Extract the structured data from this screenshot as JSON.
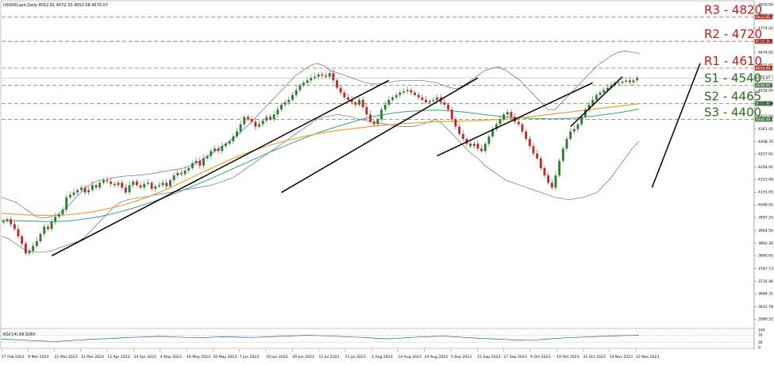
{
  "header": {
    "title": "US500Cash,Daily  4552.81 4572.33 4552.56 4570.07"
  },
  "rsi_panel": {
    "label": "RSI(14) 69.9260",
    "ticks": [
      "100",
      "70",
      "30",
      "0"
    ]
  },
  "chart_data": {
    "type": "candlestick",
    "y_ticks": [
      "4870.00",
      "4827.33",
      "4774.42",
      "4721.51",
      "4674.92",
      "4622.01",
      "4518.00",
      "4465.09",
      "4413.50",
      "4361.41",
      "4308.76",
      "4257.62",
      "4204.91",
      "4153.08",
      "4101.05",
      "4048.92",
      "3997.25",
      "3944.56",
      "3892.26",
      "3840.65",
      "3787.73",
      "3735.46",
      "3684.31",
      "3631.78",
      "3580.52"
    ],
    "y_range": [
      3545,
      4880
    ],
    "x_ticks": [
      "27 Feb 2023",
      "9 Mar 2023",
      "21 Mar 2023",
      "31 Mar 2023",
      "12 Apr 2023",
      "24 Apr 2023",
      "4 May 2023",
      "16 May 2023",
      "26 May 2023",
      "7 Jun 2023",
      "19 Jun 2023",
      "29 Jun 2023",
      "11 Jul 2023",
      "21 Jul 2023",
      "2 Aug 2023",
      "14 Aug 2023",
      "24 Aug 2023",
      "5 Sep 2023",
      "15 Sep 2023",
      "27 Sep 2023",
      "9 Oct 2023",
      "19 Oct 2023",
      "31 Oct 2023",
      "10 Nov 2023",
      "22 Nov 2023"
    ],
    "last_price": {
      "value": 4570.07,
      "label": "4570.07"
    },
    "levels": [
      {
        "name": "R3 - 4820",
        "value": 4820,
        "tag": "4820.00",
        "kind": "resistance"
      },
      {
        "name": "R2 - 4720",
        "value": 4720,
        "tag": "4720.00",
        "kind": "resistance"
      },
      {
        "name": "R1 - 4610",
        "value": 4610,
        "tag": "4610.00",
        "kind": "resistance"
      },
      {
        "name": "S1 - 4540",
        "value": 4540,
        "tag": "4540.00",
        "kind": "support"
      },
      {
        "name": "S2 - 4465",
        "value": 4465,
        "tag": "4465.00",
        "kind": "support"
      },
      {
        "name": "S3 - 4400",
        "value": 4400,
        "tag": "4400.00",
        "kind": "support"
      }
    ],
    "candles_close": [
      3982,
      3990,
      3970,
      3950,
      3920,
      3890,
      3850,
      3860,
      3880,
      3900,
      3930,
      3960,
      3950,
      3980,
      4000,
      4010,
      4030,
      4080,
      4090,
      4100,
      4110,
      4120,
      4100,
      4110,
      4130,
      4120,
      4140,
      4150,
      4145,
      4135,
      4130,
      4140,
      4120,
      4100,
      4130,
      4145,
      4130,
      4120,
      4135,
      4140,
      4115,
      4125,
      4130,
      4140,
      4125,
      4150,
      4170,
      4180,
      4175,
      4190,
      4200,
      4220,
      4230,
      4210,
      4240,
      4250,
      4270,
      4280,
      4270,
      4290,
      4300,
      4310,
      4330,
      4350,
      4380,
      4410,
      4400,
      4390,
      4370,
      4380,
      4395,
      4410,
      4400,
      4420,
      4440,
      4460,
      4470,
      4480,
      4500,
      4520,
      4540,
      4550,
      4560,
      4570,
      4575,
      4585,
      4580,
      4575,
      4590,
      4560,
      4530,
      4510,
      4490,
      4480,
      4470,
      4460,
      4480,
      4450,
      4420,
      4390,
      4380,
      4400,
      4440,
      4460,
      4480,
      4490,
      4500,
      4510,
      4515,
      4520,
      4510,
      4500,
      4490,
      4480,
      4470,
      4475,
      4480,
      4490,
      4470,
      4460,
      4440,
      4400,
      4370,
      4340,
      4320,
      4300,
      4290,
      4300,
      4280,
      4270,
      4300,
      4330,
      4360,
      4380,
      4400,
      4420,
      4430,
      4410,
      4390,
      4380,
      4350,
      4320,
      4290,
      4260,
      4240,
      4200,
      4170,
      4140,
      4120,
      4170,
      4230,
      4280,
      4320,
      4350,
      4360,
      4380,
      4410,
      4440,
      4460,
      4480,
      4500,
      4510,
      4520,
      4530,
      4540,
      4550,
      4550,
      4555,
      4560,
      4552,
      4560,
      4570
    ],
    "bollinger_mid": [
      4000,
      3990,
      3975,
      3960,
      3950,
      3940,
      3935,
      3935,
      3940,
      3950,
      3965,
      3985,
      4005,
      4025,
      4045,
      4065,
      4080,
      4095,
      4105,
      4110,
      4118,
      4125,
      4130,
      4135,
      4140,
      4145,
      4150,
      4155,
      4160,
      4165,
      4175,
      4185,
      4200,
      4215,
      4235,
      4250,
      4270,
      4285,
      4300,
      4320,
      4340,
      4360,
      4380,
      4400,
      4420,
      4440,
      4455,
      4470,
      4480,
      4490,
      4495,
      4500,
      4505,
      4505,
      4500,
      4495,
      4490,
      4485,
      4485,
      4488,
      4490,
      4492,
      4495,
      4492,
      4480,
      4460,
      4440,
      4420,
      4400,
      4380,
      4360,
      4340,
      4330,
      4320,
      4310,
      4300,
      4300,
      4305,
      4310,
      4300,
      4290,
      4280,
      4270,
      4270,
      4290,
      4320,
      4360,
      4400,
      4440,
      4470,
      4490,
      4500
    ],
    "bollinger_upper": [
      4080,
      4070,
      4060,
      4040,
      4020,
      4000,
      3995,
      4000,
      4010,
      4030,
      4060,
      4090,
      4120,
      4140,
      4150,
      4155,
      4160,
      4165,
      4168,
      4170,
      4172,
      4175,
      4180,
      4185,
      4190,
      4195,
      4200,
      4210,
      4225,
      4240,
      4260,
      4280,
      4300,
      4320,
      4345,
      4370,
      4400,
      4430,
      4460,
      4490,
      4520,
      4550,
      4580,
      4600,
      4620,
      4630,
      4620,
      4600,
      4590,
      4580,
      4570,
      4560,
      4550,
      4545,
      4545,
      4550,
      4555,
      4560,
      4560,
      4560,
      4560,
      4555,
      4550,
      4540,
      4530,
      4525,
      4540,
      4560,
      4580,
      4600,
      4610,
      4615,
      4600,
      4580,
      4560,
      4530,
      4500,
      4470,
      4440,
      4440,
      4470,
      4500,
      4530,
      4560,
      4590,
      4620,
      4640,
      4660,
      4675,
      4680,
      4676,
      4670
    ],
    "bollinger_lower": [
      3920,
      3910,
      3890,
      3870,
      3860,
      3855,
      3855,
      3860,
      3870,
      3880,
      3890,
      3900,
      3920,
      3950,
      3980,
      4010,
      4040,
      4060,
      4070,
      4075,
      4080,
      4085,
      4090,
      4095,
      4100,
      4105,
      4110,
      4115,
      4120,
      4125,
      4130,
      4140,
      4150,
      4160,
      4180,
      4200,
      4220,
      4240,
      4260,
      4280,
      4300,
      4320,
      4340,
      4360,
      4380,
      4400,
      4410,
      4415,
      4420,
      4415,
      4410,
      4400,
      4395,
      4390,
      4385,
      4380,
      4375,
      4370,
      4370,
      4372,
      4380,
      4390,
      4400,
      4380,
      4350,
      4320,
      4290,
      4260,
      4240,
      4210,
      4190,
      4170,
      4150,
      4140,
      4130,
      4120,
      4110,
      4100,
      4090,
      4080,
      4075,
      4070,
      4075,
      4080,
      4090,
      4100,
      4130,
      4160,
      4200,
      4240,
      4280,
      4310
    ],
    "ma_teal": [
      3985,
      3985,
      3984,
      3983,
      3982,
      3981,
      3980,
      3981,
      3983,
      3986,
      3990,
      3995,
      4001,
      4008,
      4016,
      4025,
      4035,
      4045,
      4056,
      4068,
      4080,
      4093,
      4106,
      4120,
      4134,
      4148,
      4163,
      4178,
      4193,
      4208,
      4223,
      4238,
      4253,
      4268,
      4282,
      4296,
      4310,
      4323,
      4336,
      4348,
      4359,
      4370,
      4380,
      4390,
      4400,
      4408,
      4415,
      4421,
      4426,
      4430,
      4433,
      4435,
      4437,
      4438,
      4437,
      4435,
      4432,
      4428,
      4424,
      4420,
      4416,
      4412,
      4409,
      4407,
      4405,
      4404,
      4403,
      4402,
      4402,
      4403,
      4405,
      4408,
      4412,
      4416,
      4420,
      4425,
      4430,
      4436,
      4443
    ],
    "ma_orange": [
      4015,
      4012,
      4010,
      4008,
      4007,
      4006,
      4005,
      4006,
      4008,
      4011,
      4015,
      4020,
      4026,
      4033,
      4041,
      4050,
      4060,
      4071,
      4083,
      4096,
      4110,
      4125,
      4141,
      4157,
      4173,
      4189,
      4205,
      4220,
      4235,
      4249,
      4262,
      4274,
      4285,
      4295,
      4305,
      4314,
      4322,
      4330,
      4337,
      4343,
      4349,
      4354,
      4358,
      4362,
      4366,
      4370,
      4374,
      4377,
      4380,
      4382,
      4384,
      4386,
      4388,
      4390,
      4391,
      4392,
      4393,
      4394,
      4395,
      4396,
      4398,
      4400,
      4402,
      4405,
      4408,
      4412,
      4416,
      4420,
      4424,
      4428,
      4432,
      4436,
      4440,
      4444,
      4448,
      4452,
      4456,
      4460,
      4464
    ],
    "trendlines": [
      {
        "from_index": 13,
        "from_value": 3840,
        "to_index": 104,
        "to_value": 4560
      },
      {
        "from_index": 75,
        "from_value": 4100,
        "to_index": 128,
        "to_value": 4570
      },
      {
        "from_index": 117,
        "from_value": 4250,
        "to_index": 159,
        "to_value": 4550
      },
      {
        "from_index": 153,
        "from_value": 4370,
        "to_index": 167,
        "to_value": 4575
      },
      {
        "from_index": 175,
        "from_value": 4120,
        "to_index": 188,
        "to_value": 4630
      }
    ],
    "rsi_values": [
      48,
      46,
      44,
      40,
      38,
      36,
      35,
      38,
      42,
      45,
      48,
      50,
      52,
      55,
      58,
      60,
      62,
      64,
      63,
      60,
      58,
      56,
      57,
      60,
      62,
      61,
      59,
      58,
      60,
      62,
      64,
      66,
      68,
      70,
      69,
      67,
      65,
      63,
      60,
      58,
      55,
      52,
      50,
      53,
      57,
      60,
      62,
      64,
      65,
      62,
      58,
      55,
      52,
      50,
      48,
      45,
      43,
      42,
      44,
      48,
      52,
      56,
      58,
      60,
      62,
      64,
      66,
      68,
      69,
      70
    ],
    "rsi_levels": [
      70,
      30
    ],
    "grid": false
  }
}
